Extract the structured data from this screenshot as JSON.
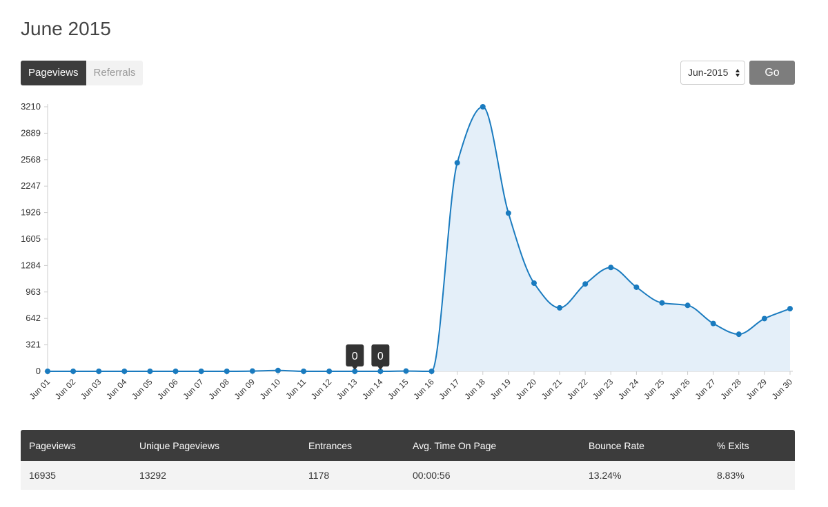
{
  "header": {
    "title": "June 2015"
  },
  "tabs": [
    {
      "label": "Pageviews",
      "active": true
    },
    {
      "label": "Referrals",
      "active": false
    }
  ],
  "controls": {
    "month_value": "Jun-2015",
    "go_label": "Go"
  },
  "colors": {
    "line": "#1a7bbf",
    "fill": "#e4eff9",
    "tooltip": "#333333",
    "header_bg": "#3c3c3c"
  },
  "chart_data": {
    "type": "area",
    "x": [
      "Jun 01",
      "Jun 02",
      "Jun 03",
      "Jun 04",
      "Jun 05",
      "Jun 06",
      "Jun 07",
      "Jun 08",
      "Jun 09",
      "Jun 10",
      "Jun 11",
      "Jun 12",
      "Jun 13",
      "Jun 14",
      "Jun 15",
      "Jun 16",
      "Jun 17",
      "Jun 18",
      "Jun 19",
      "Jun 20",
      "Jun 21",
      "Jun 22",
      "Jun 23",
      "Jun 24",
      "Jun 25",
      "Jun 26",
      "Jun 27",
      "Jun 28",
      "Jun 29",
      "Jun 30"
    ],
    "values": [
      0,
      0,
      0,
      0,
      0,
      0,
      0,
      0,
      3,
      10,
      0,
      0,
      0,
      0,
      3,
      0,
      2530,
      3210,
      1920,
      1070,
      770,
      1060,
      1260,
      1020,
      830,
      800,
      580,
      450,
      640,
      760
    ],
    "yticks": [
      "0",
      "321",
      "642",
      "963",
      "1284",
      "1605",
      "1926",
      "2247",
      "2568",
      "2889",
      "3210"
    ],
    "ylim": [
      0,
      3210
    ],
    "tooltips": [
      {
        "category": "Jun 13",
        "value": "0"
      },
      {
        "category": "Jun 14",
        "value": "0"
      }
    ]
  },
  "stats": {
    "headers": [
      "Pageviews",
      "Unique Pageviews",
      "Entrances",
      "Avg. Time On Page",
      "Bounce Rate",
      "% Exits"
    ],
    "values": [
      "16935",
      "13292",
      "1178",
      "00:00:56",
      "13.24%",
      "8.83%"
    ]
  }
}
